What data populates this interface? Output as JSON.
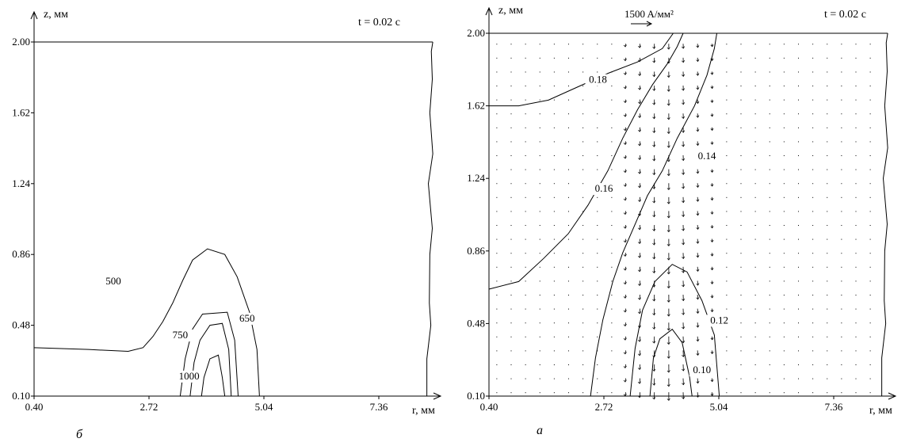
{
  "chart_data": [
    {
      "panel_label": "б",
      "time_label": "t = 0.02 c",
      "xlabel": "r, мм",
      "ylabel": "z, мм",
      "xlim": [
        0.4,
        9.0
      ],
      "ylim": [
        0.1,
        2.1
      ],
      "x_ticks": [
        "0.40",
        "2.72",
        "5.04",
        "7.36"
      ],
      "y_ticks": [
        "0.10",
        "0.48",
        "0.86",
        "1.24",
        "1.62",
        "2.00"
      ],
      "contours": [
        {
          "label": "500",
          "points": [
            [
              0.4,
              0.36
            ],
            [
              1.5,
              0.35
            ],
            [
              2.3,
              0.34
            ],
            [
              2.6,
              0.36
            ],
            [
              2.8,
              0.42
            ],
            [
              3.0,
              0.5
            ],
            [
              3.2,
              0.6
            ],
            [
              3.4,
              0.72
            ],
            [
              3.6,
              0.83
            ],
            [
              3.9,
              0.89
            ],
            [
              4.25,
              0.86
            ],
            [
              4.5,
              0.74
            ],
            [
              4.75,
              0.55
            ],
            [
              4.9,
              0.35
            ],
            [
              4.95,
              0.1
            ]
          ],
          "label_at": [
            2.0,
            0.7
          ]
        },
        {
          "label": "650",
          "points": [
            [
              3.35,
              0.1
            ],
            [
              3.45,
              0.3
            ],
            [
              3.6,
              0.46
            ],
            [
              3.8,
              0.54
            ],
            [
              4.3,
              0.55
            ],
            [
              4.45,
              0.4
            ],
            [
              4.52,
              0.1
            ]
          ],
          "label_at": [
            4.7,
            0.5
          ]
        },
        {
          "label": "750",
          "points": [
            [
              3.55,
              0.1
            ],
            [
              3.63,
              0.28
            ],
            [
              3.75,
              0.4
            ],
            [
              3.95,
              0.48
            ],
            [
              4.2,
              0.49
            ],
            [
              4.33,
              0.35
            ],
            [
              4.38,
              0.1
            ]
          ],
          "label_at": [
            3.35,
            0.41
          ]
        },
        {
          "label": "1000",
          "points": [
            [
              3.78,
              0.1
            ],
            [
              3.83,
              0.2
            ],
            [
              3.95,
              0.3
            ],
            [
              4.12,
              0.32
            ],
            [
              4.2,
              0.2
            ],
            [
              4.25,
              0.1
            ]
          ],
          "label_at": [
            3.53,
            0.19
          ]
        }
      ],
      "boundary": [
        [
          8.45,
          2.0
        ],
        [
          8.42,
          1.95
        ],
        [
          8.44,
          1.8
        ],
        [
          8.39,
          1.62
        ],
        [
          8.45,
          1.4
        ],
        [
          8.36,
          1.24
        ],
        [
          8.44,
          1.0
        ],
        [
          8.39,
          0.86
        ],
        [
          8.38,
          0.6
        ],
        [
          8.41,
          0.48
        ],
        [
          8.33,
          0.3
        ],
        [
          8.33,
          0.1
        ]
      ]
    },
    {
      "panel_label": "а",
      "time_label": "t = 0.02 c",
      "xlabel": "r, мм",
      "ylabel": "z, мм",
      "xlim": [
        0.4,
        9.0
      ],
      "ylim": [
        0.1,
        2.1
      ],
      "x_ticks": [
        "0.40",
        "2.72",
        "5.04",
        "7.36"
      ],
      "y_ticks": [
        "0.10",
        "0.48",
        "0.86",
        "1.24",
        "1.62",
        "2.00"
      ],
      "vector_scale_label": "1500 A/мм²",
      "contours": [
        {
          "label": "0.18",
          "points": [
            [
              0.4,
              1.62
            ],
            [
              1.0,
              1.62
            ],
            [
              1.6,
              1.65
            ],
            [
              2.2,
              1.72
            ],
            [
              2.8,
              1.79
            ],
            [
              3.4,
              1.85
            ],
            [
              3.9,
              1.92
            ],
            [
              4.12,
              2.0
            ]
          ],
          "label_at": [
            2.6,
            1.74
          ]
        },
        {
          "label": "0.16",
          "points": [
            [
              0.4,
              0.66
            ],
            [
              1.0,
              0.7
            ],
            [
              1.5,
              0.82
            ],
            [
              2.0,
              0.95
            ],
            [
              2.4,
              1.1
            ],
            [
              2.8,
              1.28
            ],
            [
              3.1,
              1.45
            ],
            [
              3.4,
              1.6
            ],
            [
              3.7,
              1.73
            ],
            [
              4.0,
              1.84
            ],
            [
              4.2,
              1.93
            ],
            [
              4.32,
              2.0
            ]
          ],
          "label_at": [
            2.72,
            1.17
          ]
        },
        {
          "label": "0.14",
          "points": [
            [
              2.45,
              0.1
            ],
            [
              2.55,
              0.3
            ],
            [
              2.7,
              0.5
            ],
            [
              2.9,
              0.7
            ],
            [
              3.1,
              0.85
            ],
            [
              3.35,
              1.0
            ],
            [
              3.6,
              1.15
            ],
            [
              3.9,
              1.28
            ],
            [
              4.2,
              1.45
            ],
            [
              4.55,
              1.62
            ],
            [
              4.8,
              1.78
            ],
            [
              4.95,
              1.92
            ],
            [
              5.0,
              2.0
            ]
          ],
          "label_at": [
            4.8,
            1.34
          ]
        },
        {
          "label": "0.12",
          "points": [
            [
              3.25,
              0.1
            ],
            [
              3.35,
              0.35
            ],
            [
              3.5,
              0.55
            ],
            [
              3.75,
              0.7
            ],
            [
              4.1,
              0.79
            ],
            [
              4.4,
              0.75
            ],
            [
              4.7,
              0.6
            ],
            [
              4.95,
              0.42
            ],
            [
              5.05,
              0.1
            ]
          ],
          "label_at": [
            5.05,
            0.48
          ]
        },
        {
          "label": "0.10",
          "points": [
            [
              3.65,
              0.1
            ],
            [
              3.72,
              0.3
            ],
            [
              3.85,
              0.4
            ],
            [
              4.1,
              0.45
            ],
            [
              4.3,
              0.38
            ],
            [
              4.45,
              0.2
            ],
            [
              4.5,
              0.1
            ]
          ],
          "label_at": [
            4.7,
            0.22
          ]
        }
      ],
      "boundary": [
        [
          8.45,
          2.0
        ],
        [
          8.42,
          1.95
        ],
        [
          8.44,
          1.8
        ],
        [
          8.39,
          1.62
        ],
        [
          8.45,
          1.4
        ],
        [
          8.36,
          1.24
        ],
        [
          8.44,
          1.0
        ],
        [
          8.39,
          0.86
        ],
        [
          8.38,
          0.6
        ],
        [
          8.41,
          0.48
        ],
        [
          8.33,
          0.3
        ],
        [
          8.33,
          0.1
        ]
      ]
    }
  ]
}
